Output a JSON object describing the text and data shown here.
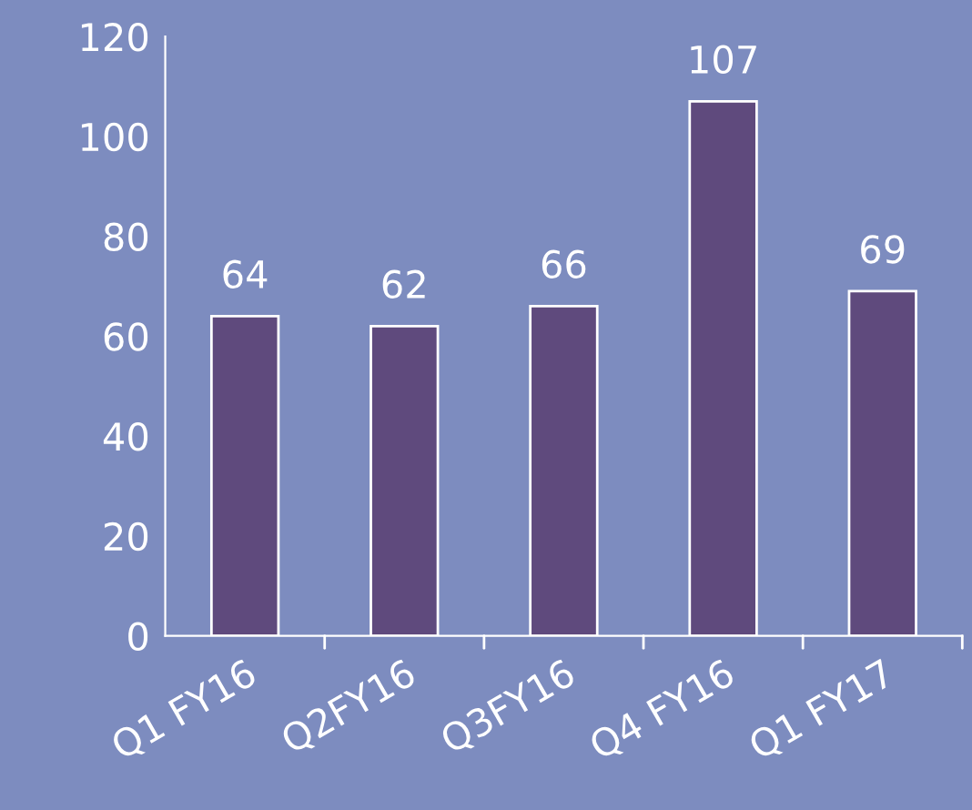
{
  "chart_data": {
    "type": "bar",
    "categories": [
      "Q1 FY16",
      "Q2FY16",
      "Q3FY16",
      "Q4 FY16",
      "Q1 FY17"
    ],
    "values": [
      64,
      62,
      66,
      107,
      69
    ],
    "color": "#5f4a7d",
    "ylim": [
      0,
      120
    ],
    "yticks": [
      0,
      20,
      40,
      60,
      80,
      100,
      120
    ],
    "data_labels": true,
    "grid": false,
    "legend": false
  }
}
